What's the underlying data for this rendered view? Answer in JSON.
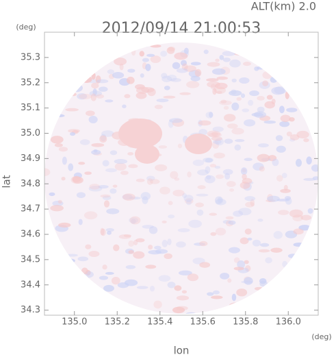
{
  "chart_data": {
    "type": "field",
    "title": "2012/09/14 21:00:53",
    "subtitle": "ALT(km) 2.0",
    "x_label": "lon",
    "y_label": "lat",
    "x_unit": "(deg)",
    "y_unit": "(deg)",
    "xlim": [
      134.86,
      136.14
    ],
    "ylim": [
      34.28,
      35.4
    ],
    "xticks": [
      {
        "value": 135,
        "label": "135.0"
      },
      135.2,
      135.4,
      135.6,
      135.8,
      {
        "value": 136,
        "label": "136.0"
      }
    ],
    "yticks": [
      34.3,
      34.4,
      34.5,
      34.6,
      34.7,
      34.8,
      34.9,
      {
        "value": 35,
        "label": "35.0"
      },
      35.1,
      35.2,
      35.3
    ]
  }
}
